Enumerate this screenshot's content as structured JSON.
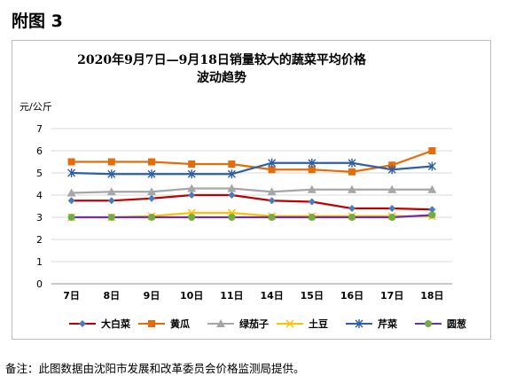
{
  "figure_label": "附图 3",
  "footnote": "备注：此图数据由沈阳市发展和改革委员会价格监测局提供。",
  "chart_data": {
    "type": "line",
    "title_line1": "2020年9月7日—9月18日销量较大的蔬菜平均价格",
    "title_line2": "波动趋势",
    "ylabel": "元/公斤",
    "xlabel": "",
    "ylim": [
      0,
      7
    ],
    "yticks": [
      "0",
      "1",
      "2",
      "3",
      "4",
      "5",
      "6",
      "7"
    ],
    "grid": "horizontal",
    "legend_position": "bottom",
    "categories": [
      "7日",
      "8日",
      "9日",
      "10日",
      "11日",
      "14日",
      "15日",
      "16日",
      "17日",
      "18日"
    ],
    "series": [
      {
        "name": "大白菜",
        "color": "#c00000",
        "marker": "diamond",
        "marker_color": "#4a7ebb",
        "values": [
          3.75,
          3.75,
          3.85,
          4.0,
          4.0,
          3.75,
          3.7,
          3.4,
          3.4,
          3.35
        ]
      },
      {
        "name": "黄瓜",
        "color": "#e46c0a",
        "marker": "square",
        "marker_color": "#e46c0a",
        "values": [
          5.5,
          5.5,
          5.5,
          5.4,
          5.4,
          5.15,
          5.15,
          5.05,
          5.35,
          6.0
        ]
      },
      {
        "name": "绿茄子",
        "color": "#a6a6a6",
        "marker": "triangle",
        "marker_color": "#a6a6a6",
        "values": [
          4.1,
          4.15,
          4.15,
          4.3,
          4.3,
          4.15,
          4.25,
          4.25,
          4.25,
          4.25
        ]
      },
      {
        "name": "土豆",
        "color": "#ffc000",
        "marker": "x",
        "marker_color": "#ffc000",
        "values": [
          3.0,
          3.0,
          3.05,
          3.2,
          3.2,
          3.05,
          3.05,
          3.05,
          3.05,
          3.05
        ]
      },
      {
        "name": "芹菜",
        "color": "#2e5fa3",
        "marker": "star",
        "marker_color": "#2e5fa3",
        "values": [
          5.0,
          4.95,
          4.95,
          4.95,
          4.95,
          5.45,
          5.45,
          5.45,
          5.15,
          5.3
        ]
      },
      {
        "name": "圆葱",
        "color": "#7030a0",
        "marker": "circle",
        "marker_color": "#70ad47",
        "values": [
          3.0,
          3.0,
          3.0,
          3.0,
          3.0,
          3.0,
          3.0,
          3.0,
          3.0,
          3.1
        ]
      }
    ]
  }
}
